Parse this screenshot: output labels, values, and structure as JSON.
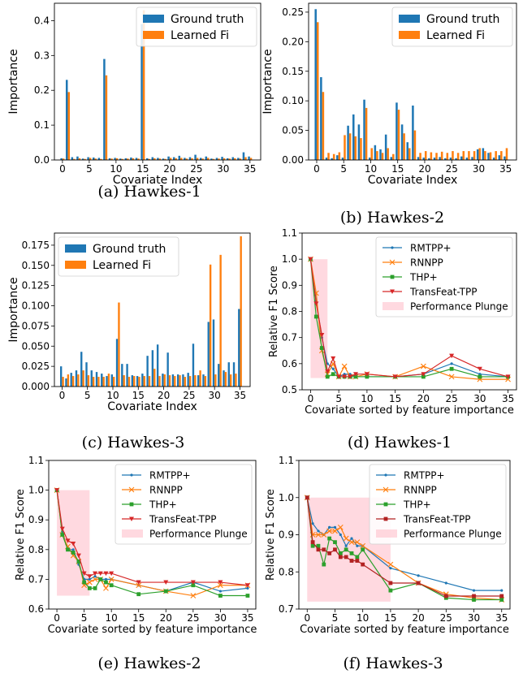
{
  "chart_data": [
    {
      "type": "bar",
      "caption": "(a) Hawkes-1",
      "xlabel": "Covariate Index",
      "ylabel": "Importance",
      "xlim": [
        -1.5,
        37
      ],
      "ylim": [
        0,
        0.45
      ],
      "xticks": [
        0,
        5,
        10,
        15,
        20,
        25,
        30,
        35
      ],
      "yticks": [
        0.0,
        0.1,
        0.2,
        0.3,
        0.4
      ],
      "ytick_labels": [
        "0.0",
        "0.1",
        "0.2",
        "0.3",
        "0.4"
      ],
      "legend_position": "top-right",
      "grid": false,
      "categories": [
        0,
        1,
        2,
        3,
        4,
        5,
        6,
        7,
        8,
        9,
        10,
        11,
        12,
        13,
        14,
        15,
        16,
        17,
        18,
        19,
        20,
        21,
        22,
        23,
        24,
        25,
        26,
        27,
        28,
        29,
        30,
        31,
        32,
        33,
        34,
        35
      ],
      "series": [
        {
          "name": "Ground truth",
          "color": "#1f77b4",
          "values": [
            0.005,
            0.23,
            0.008,
            0.01,
            0.004,
            0.008,
            0.007,
            0.006,
            0.29,
            0.005,
            0.006,
            0.004,
            0.005,
            0.007,
            0.006,
            0.39,
            0.005,
            0.008,
            0.006,
            0.004,
            0.01,
            0.008,
            0.012,
            0.006,
            0.008,
            0.015,
            0.006,
            0.01,
            0.004,
            0.006,
            0.009,
            0.005,
            0.008,
            0.006,
            0.022,
            0.01
          ]
        },
        {
          "name": "Learned Fi",
          "color": "#ff7f0e",
          "values": [
            0.004,
            0.195,
            0.003,
            0.005,
            0.003,
            0.006,
            0.004,
            0.003,
            0.243,
            0.004,
            0.005,
            0.003,
            0.004,
            0.005,
            0.004,
            0.43,
            0.003,
            0.005,
            0.004,
            0.003,
            0.006,
            0.005,
            0.006,
            0.004,
            0.005,
            0.006,
            0.004,
            0.006,
            0.003,
            0.004,
            0.005,
            0.004,
            0.005,
            0.004,
            0.008,
            0.006
          ]
        }
      ]
    },
    {
      "type": "bar",
      "caption": "(b) Hawkes-2",
      "xlabel": "Covariate Index",
      "ylabel": "Importance",
      "xlim": [
        -1.5,
        37
      ],
      "ylim": [
        0,
        0.265
      ],
      "xticks": [
        0,
        5,
        10,
        15,
        20,
        25,
        30,
        35
      ],
      "yticks": [
        0.0,
        0.05,
        0.1,
        0.15,
        0.2,
        0.25
      ],
      "ytick_labels": [
        "0.00",
        "0.05",
        "0.10",
        "0.15",
        "0.20",
        "0.25"
      ],
      "legend_position": "top-right",
      "grid": false,
      "categories": [
        0,
        1,
        2,
        3,
        4,
        5,
        6,
        7,
        8,
        9,
        10,
        11,
        12,
        13,
        14,
        15,
        16,
        17,
        18,
        19,
        20,
        21,
        22,
        23,
        24,
        25,
        26,
        27,
        28,
        29,
        30,
        31,
        32,
        33,
        34,
        35
      ],
      "series": [
        {
          "name": "Ground truth",
          "color": "#1f77b4",
          "values": [
            0.255,
            0.14,
            0.004,
            0.003,
            0.008,
            0.004,
            0.058,
            0.077,
            0.06,
            0.102,
            0.004,
            0.025,
            0.018,
            0.043,
            0.005,
            0.097,
            0.06,
            0.03,
            0.092,
            0.005,
            0.004,
            0.003,
            0.004,
            0.005,
            0.003,
            0.004,
            0.003,
            0.006,
            0.004,
            0.005,
            0.018,
            0.02,
            0.012,
            0.004,
            0.008,
            0.006
          ]
        },
        {
          "name": "Learned Fi",
          "color": "#ff7f0e",
          "values": [
            0.233,
            0.115,
            0.012,
            0.01,
            0.013,
            0.042,
            0.045,
            0.04,
            0.037,
            0.088,
            0.02,
            0.015,
            0.012,
            0.02,
            0.01,
            0.085,
            0.045,
            0.02,
            0.05,
            0.012,
            0.015,
            0.013,
            0.012,
            0.014,
            0.012,
            0.015,
            0.012,
            0.015,
            0.015,
            0.015,
            0.02,
            0.015,
            0.013,
            0.015,
            0.015,
            0.02
          ]
        }
      ]
    },
    {
      "type": "bar",
      "caption": "(c) Hawkes-3",
      "xlabel": "Covariate Index",
      "ylabel": "Importance",
      "xlim": [
        -1.5,
        37
      ],
      "ylim": [
        0,
        0.19
      ],
      "xticks": [
        0,
        5,
        10,
        15,
        20,
        25,
        30,
        35
      ],
      "yticks": [
        0.0,
        0.025,
        0.05,
        0.075,
        0.1,
        0.125,
        0.15,
        0.175
      ],
      "ytick_labels": [
        "0.000",
        "0.025",
        "0.050",
        "0.075",
        "0.100",
        "0.125",
        "0.150",
        "0.175"
      ],
      "legend_position": "top-left",
      "grid": false,
      "categories": [
        0,
        1,
        2,
        3,
        4,
        5,
        6,
        7,
        8,
        9,
        10,
        11,
        12,
        13,
        14,
        15,
        16,
        17,
        18,
        19,
        20,
        21,
        22,
        23,
        24,
        25,
        26,
        27,
        28,
        29,
        30,
        31,
        32,
        33,
        34,
        35
      ],
      "series": [
        {
          "name": "Ground truth",
          "color": "#1f77b4",
          "values": [
            0.025,
            0.01,
            0.017,
            0.02,
            0.043,
            0.03,
            0.02,
            0.018,
            0.016,
            0.013,
            0.015,
            0.059,
            0.028,
            0.028,
            0.014,
            0.013,
            0.016,
            0.038,
            0.045,
            0.052,
            0.016,
            0.042,
            0.015,
            0.015,
            0.015,
            0.017,
            0.053,
            0.014,
            0.015,
            0.08,
            0.083,
            0.028,
            0.02,
            0.03,
            0.03,
            0.096
          ]
        },
        {
          "name": "Learned Fi",
          "color": "#ff7f0e",
          "values": [
            0.012,
            0.015,
            0.013,
            0.015,
            0.02,
            0.014,
            0.012,
            0.012,
            0.012,
            0.016,
            0.012,
            0.104,
            0.014,
            0.012,
            0.013,
            0.012,
            0.013,
            0.013,
            0.022,
            0.013,
            0.015,
            0.014,
            0.013,
            0.014,
            0.012,
            0.013,
            0.014,
            0.02,
            0.013,
            0.151,
            0.015,
            0.163,
            0.018,
            0.015,
            0.016,
            0.186
          ]
        }
      ]
    },
    {
      "type": "line",
      "caption": "(d) Hawkes-1",
      "xlabel": "Covariate sorted by feature importance",
      "ylabel": "Relative F1 Score",
      "xlim": [
        -1.5,
        36.5
      ],
      "ylim": [
        0.5,
        1.1
      ],
      "xticks": [
        0,
        5,
        10,
        15,
        20,
        25,
        30,
        35
      ],
      "yticks": [
        0.5,
        0.6,
        0.7,
        0.8,
        0.9,
        1.0,
        1.1
      ],
      "ytick_labels": [
        "0.5",
        "0.6",
        "0.7",
        "0.8",
        "0.9",
        "1.0",
        "1.1"
      ],
      "legend_position": "top-right",
      "grid": false,
      "plunge": {
        "label": "Performance Plunge",
        "x": [
          0,
          3
        ],
        "y": [
          0.545,
          1.0
        ],
        "color": "#ffc0cb"
      },
      "x": [
        0,
        1,
        2,
        3,
        4,
        5,
        6,
        7,
        8,
        10,
        15,
        20,
        25,
        30,
        35
      ],
      "series": [
        {
          "name": "RMTPP+",
          "color": "#1f77b4",
          "marker": "point",
          "values": [
            1.0,
            0.84,
            0.7,
            0.6,
            0.58,
            0.55,
            0.56,
            0.56,
            0.55,
            0.55,
            0.55,
            0.56,
            0.6,
            0.56,
            0.55
          ]
        },
        {
          "name": "RNNPP",
          "color": "#ff7f0e",
          "marker": "x",
          "values": [
            1.0,
            0.87,
            0.65,
            0.56,
            0.6,
            0.55,
            0.59,
            0.55,
            0.55,
            0.56,
            0.55,
            0.59,
            0.55,
            0.54,
            0.54
          ]
        },
        {
          "name": "THP+",
          "color": "#2ca02c",
          "marker": "square",
          "values": [
            1.0,
            0.78,
            0.66,
            0.55,
            0.56,
            0.55,
            0.55,
            0.55,
            0.55,
            0.55,
            0.55,
            0.55,
            0.58,
            0.55,
            0.55
          ]
        },
        {
          "name": "TransFeat-TPP",
          "color": "#d62728",
          "marker": "triangle",
          "values": [
            1.0,
            0.83,
            0.71,
            0.57,
            0.62,
            0.55,
            0.55,
            0.55,
            0.56,
            0.56,
            0.55,
            0.56,
            0.63,
            0.58,
            0.55
          ]
        }
      ]
    },
    {
      "type": "line",
      "caption": "(e) Hawkes-2",
      "xlabel": "Covariate sorted by feature importance",
      "ylabel": "Relative F1 Score",
      "xlim": [
        -1.5,
        36.5
      ],
      "ylim": [
        0.6,
        1.1
      ],
      "xticks": [
        0,
        5,
        10,
        15,
        20,
        25,
        30,
        35
      ],
      "yticks": [
        0.6,
        0.7,
        0.8,
        0.9,
        1.0,
        1.1
      ],
      "ytick_labels": [
        "0.6",
        "0.7",
        "0.8",
        "0.9",
        "1.0",
        "1.1"
      ],
      "legend_position": "top-right",
      "grid": false,
      "plunge": {
        "label": "Performance Plunge",
        "x": [
          0,
          6
        ],
        "y": [
          0.645,
          1.0
        ],
        "color": "#ffc0cb"
      },
      "x": [
        0,
        1,
        2,
        3,
        4,
        5,
        6,
        7,
        8,
        9,
        10,
        15,
        20,
        25,
        30,
        35
      ],
      "series": [
        {
          "name": "RMTPP+",
          "color": "#1f77b4",
          "marker": "point",
          "values": [
            1.0,
            0.86,
            0.8,
            0.8,
            0.75,
            0.7,
            0.7,
            0.71,
            0.7,
            0.7,
            0.7,
            0.68,
            0.66,
            0.69,
            0.66,
            0.67
          ]
        },
        {
          "name": "RNNPP",
          "color": "#ff7f0e",
          "marker": "x",
          "values": [
            1.0,
            0.85,
            0.81,
            0.78,
            0.76,
            0.68,
            0.69,
            0.7,
            0.7,
            0.67,
            0.7,
            0.68,
            0.66,
            0.645,
            0.68,
            0.68
          ]
        },
        {
          "name": "THP+",
          "color": "#2ca02c",
          "marker": "square",
          "values": [
            1.0,
            0.85,
            0.8,
            0.79,
            0.76,
            0.69,
            0.67,
            0.67,
            0.7,
            0.69,
            0.68,
            0.65,
            0.66,
            0.68,
            0.645,
            0.645
          ]
        },
        {
          "name": "TransFeat-TPP",
          "color": "#d62728",
          "marker": "triangle",
          "values": [
            1.0,
            0.87,
            0.83,
            0.82,
            0.78,
            0.72,
            0.71,
            0.72,
            0.72,
            0.72,
            0.72,
            0.69,
            0.69,
            0.69,
            0.69,
            0.68
          ]
        }
      ]
    },
    {
      "type": "line",
      "caption": "(f) Hawkes-3",
      "xlabel": "Covariate sorted by feature importance",
      "ylabel": "Relative F1 Score",
      "xlim": [
        -1.5,
        36.5
      ],
      "ylim": [
        0.7,
        1.1
      ],
      "xticks": [
        0,
        5,
        10,
        15,
        20,
        25,
        30,
        35
      ],
      "yticks": [
        0.7,
        0.8,
        0.9,
        1.0,
        1.1
      ],
      "ytick_labels": [
        "0.7",
        "0.8",
        "0.9",
        "1.0",
        "1.1"
      ],
      "legend_position": "top-right",
      "grid": false,
      "plunge": {
        "label": "Performance Plunge",
        "x": [
          0,
          15
        ],
        "y": [
          0.72,
          1.0
        ],
        "color": "#ffc0cb"
      },
      "x": [
        0,
        1,
        2,
        3,
        4,
        5,
        6,
        7,
        8,
        9,
        10,
        15,
        20,
        25,
        30,
        35
      ],
      "series": [
        {
          "name": "RMTPP+",
          "color": "#1f77b4",
          "marker": "point",
          "values": [
            1.0,
            0.93,
            0.91,
            0.9,
            0.92,
            0.92,
            0.9,
            0.87,
            0.89,
            0.87,
            0.87,
            0.81,
            0.79,
            0.77,
            0.75,
            0.75
          ]
        },
        {
          "name": "RNNPP",
          "color": "#ff7f0e",
          "marker": "x",
          "values": [
            1.0,
            0.9,
            0.9,
            0.9,
            0.91,
            0.91,
            0.92,
            0.89,
            0.88,
            0.88,
            0.87,
            0.82,
            0.77,
            0.74,
            0.73,
            0.725
          ]
        },
        {
          "name": "THP+",
          "color": "#2ca02c",
          "marker": "square",
          "values": [
            1.0,
            0.87,
            0.87,
            0.82,
            0.89,
            0.88,
            0.85,
            0.86,
            0.85,
            0.84,
            0.86,
            0.75,
            0.77,
            0.73,
            0.725,
            0.725
          ]
        },
        {
          "name": "TransFeat-TPP",
          "color": "#b22222",
          "marker": "square",
          "values": [
            1.0,
            0.88,
            0.86,
            0.86,
            0.85,
            0.86,
            0.84,
            0.84,
            0.83,
            0.83,
            0.82,
            0.77,
            0.77,
            0.735,
            0.735,
            0.735
          ]
        }
      ]
    }
  ]
}
